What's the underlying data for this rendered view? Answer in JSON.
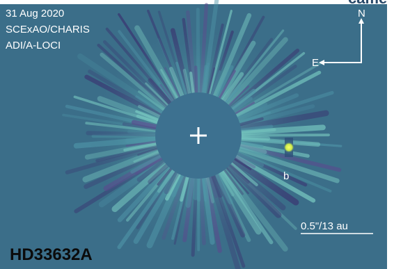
{
  "image": {
    "date": "31 Aug 2020",
    "instrument": "SCExAO/CHARIS",
    "method": "ADI/A-LOCI",
    "compass": {
      "north": "N",
      "east": "E"
    },
    "companion": "b",
    "scale_bar": "0.5\"/13 au",
    "target": "HD33632A",
    "caption_fragment": "came"
  }
}
